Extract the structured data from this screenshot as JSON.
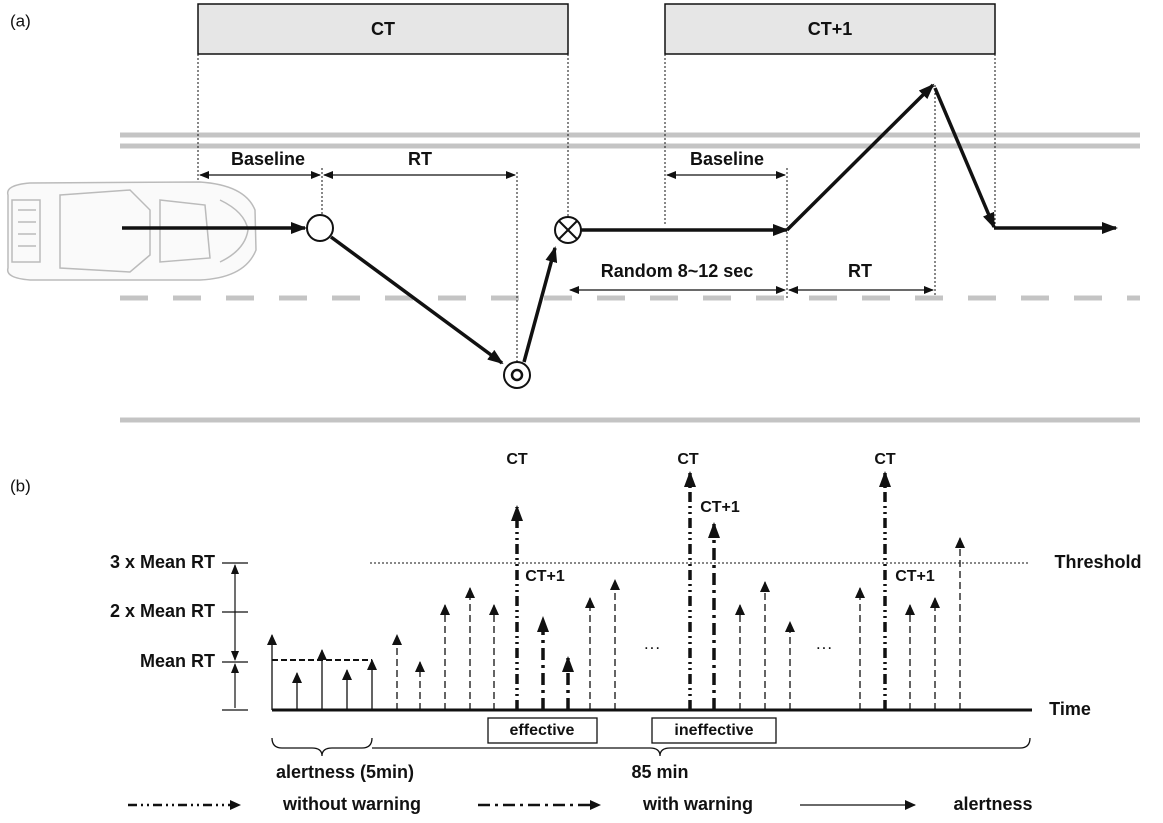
{
  "panel_a": {
    "label": "(a)",
    "windows": [
      "CT",
      "CT+1"
    ],
    "intervals": [
      "Baseline",
      "RT",
      "Baseline",
      "Random 8~12 sec",
      "RT"
    ]
  },
  "panel_b": {
    "label": "(b)",
    "y_labels": [
      "3 x Mean RT",
      "2 x Mean RT",
      "Mean RT"
    ],
    "threshold": "Threshold",
    "time": "Time",
    "events": [
      {
        "ct": "CT",
        "ct_plus_1": "CT+1"
      },
      {
        "ct": "CT",
        "ct_plus_1": "CT+1"
      },
      {
        "ct": "CT",
        "ct_plus_1": "CT+1"
      }
    ],
    "ellipses": [
      "···",
      "···"
    ],
    "outcomes": [
      "effective",
      "ineffective"
    ],
    "periods": [
      "alertness (5min)",
      "85 min"
    ]
  },
  "legend": [
    "without warning",
    "with warning",
    "alertness"
  ]
}
